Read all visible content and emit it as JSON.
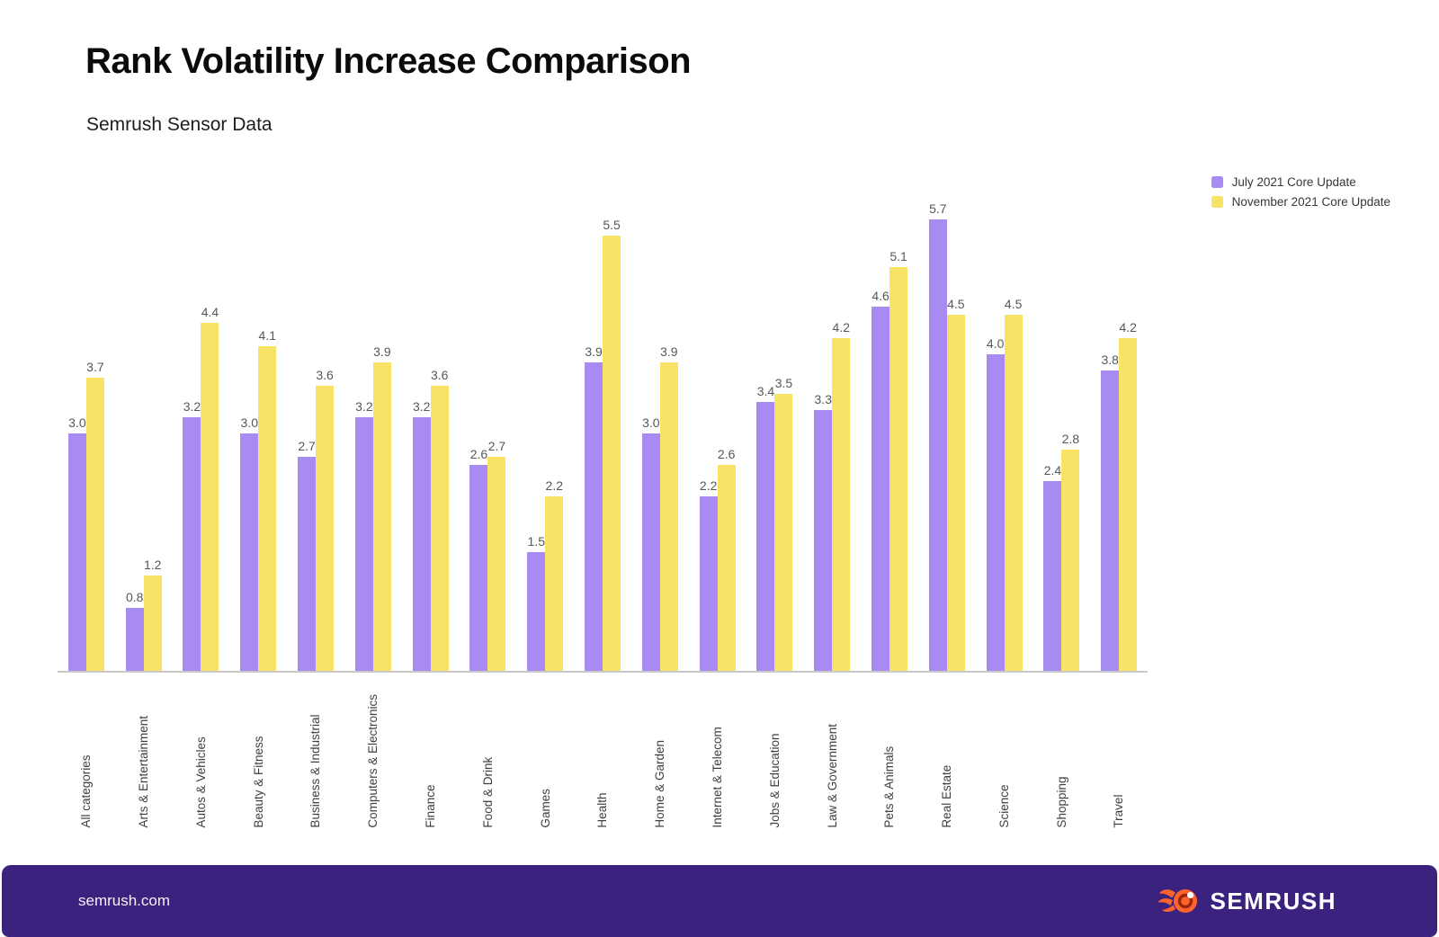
{
  "header": {
    "title": "Rank Volatility Increase Comparison",
    "subtitle": "Semrush Sensor Data"
  },
  "chart_data": {
    "type": "bar",
    "title": "Rank Volatility Increase Comparison",
    "subtitle": "Semrush Sensor Data",
    "categories": [
      "All categories",
      "Arts & Entertainment",
      "Autos & Vehicles",
      "Beauty & Fitness",
      "Business & Industrial",
      "Computers & Electronics",
      "Finance",
      "Food & Drink",
      "Games",
      "Health",
      "Home & Garden",
      "Internet & Telecom",
      "Jobs & Education",
      "Law & Government",
      "Pets & Animals",
      "Real Estate",
      "Science",
      "Shopping",
      "Travel"
    ],
    "series": [
      {
        "name": "July 2021 Core Update",
        "color": "#a88af3",
        "values": [
          3.0,
          0.8,
          3.2,
          3.0,
          2.7,
          3.2,
          3.2,
          2.6,
          1.5,
          3.9,
          3.0,
          2.2,
          3.4,
          3.3,
          4.6,
          5.7,
          4.0,
          2.4,
          3.8
        ]
      },
      {
        "name": "November 2021 Core Update",
        "color": "#f9e366",
        "values": [
          3.7,
          1.2,
          4.4,
          4.1,
          3.6,
          3.9,
          3.6,
          2.7,
          2.2,
          5.5,
          3.9,
          2.6,
          3.5,
          4.2,
          5.1,
          4.5,
          4.5,
          2.8,
          4.2
        ]
      }
    ],
    "xlabel": "",
    "ylabel": "",
    "ylim": [
      0,
      6.3
    ],
    "grid": false,
    "y_axis_visible": false,
    "legend_position": "top-right",
    "value_labels": true,
    "value_label_format": "0.0"
  },
  "footer": {
    "url": "semrush.com",
    "brand": "SEMRUSH"
  },
  "colors": {
    "july": "#a88af3",
    "november": "#f9e366",
    "footer_bg": "#3a227e",
    "brand_orange": "#ff642d",
    "brand_orange_dark": "#99260b",
    "axis_line": "#c9c9c9"
  }
}
